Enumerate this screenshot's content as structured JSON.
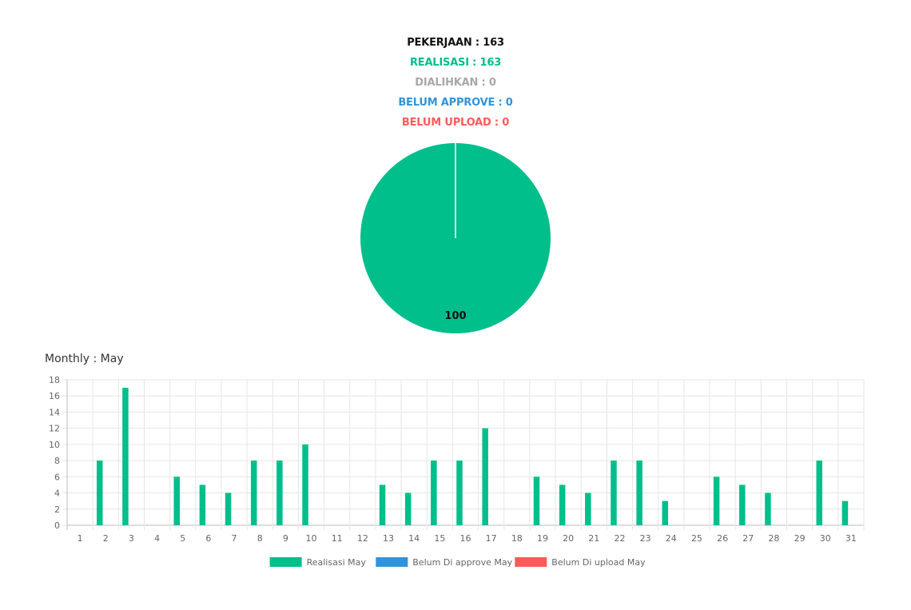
{
  "summary": {
    "pekerjaan": "PEKERJAAN : 163",
    "realisasi": "REALISASI : 163",
    "dialihkan": "DIALIHKAN : 0",
    "belum_approve": "BELUM APPROVE : 0",
    "belum_upload": "BELUM UPLOAD : 0"
  },
  "colors": {
    "black": "#111111",
    "green": "#00bf8b",
    "gray": "#a8a8a8",
    "blue": "#3094dc",
    "red": "#ff5a5a",
    "grid": "#e6e6e6",
    "axis_text": "#666666"
  },
  "monthly_title": "Monthly : May",
  "chart_data": [
    {
      "type": "pie",
      "slices": [
        {
          "name": "Realisasi",
          "value": 100,
          "color": "#00bf8b"
        }
      ],
      "data_label": "100"
    },
    {
      "type": "bar",
      "categories": [
        "1",
        "2",
        "3",
        "4",
        "5",
        "6",
        "7",
        "8",
        "9",
        "10",
        "11",
        "12",
        "13",
        "14",
        "15",
        "16",
        "17",
        "18",
        "19",
        "20",
        "21",
        "22",
        "23",
        "24",
        "25",
        "26",
        "27",
        "28",
        "29",
        "30",
        "31"
      ],
      "series": [
        {
          "name": "Realisasi May",
          "color": "#00bf8b",
          "values": [
            0,
            8,
            17,
            0,
            6,
            5,
            4,
            8,
            8,
            10,
            0,
            0,
            5,
            4,
            8,
            8,
            12,
            0,
            6,
            5,
            4,
            8,
            8,
            3,
            0,
            6,
            5,
            4,
            0,
            8,
            3
          ]
        },
        {
          "name": "Belum Di approve May",
          "color": "#3094dc",
          "values": [
            0,
            0,
            0,
            0,
            0,
            0,
            0,
            0,
            0,
            0,
            0,
            0,
            0,
            0,
            0,
            0,
            0,
            0,
            0,
            0,
            0,
            0,
            0,
            0,
            0,
            0,
            0,
            0,
            0,
            0,
            0
          ]
        },
        {
          "name": "Belum Di upload May",
          "color": "#ff5a5a",
          "values": [
            0,
            0,
            0,
            0,
            0,
            0,
            0,
            0,
            0,
            0,
            0,
            0,
            0,
            0,
            0,
            0,
            0,
            0,
            0,
            0,
            0,
            0,
            0,
            0,
            0,
            0,
            0,
            0,
            0,
            0,
            0
          ]
        }
      ],
      "ylim": [
        0,
        18
      ],
      "yticks": [
        0,
        2,
        4,
        6,
        8,
        10,
        12,
        14,
        16,
        18
      ],
      "grid": true,
      "legend_position": "bottom"
    }
  ]
}
